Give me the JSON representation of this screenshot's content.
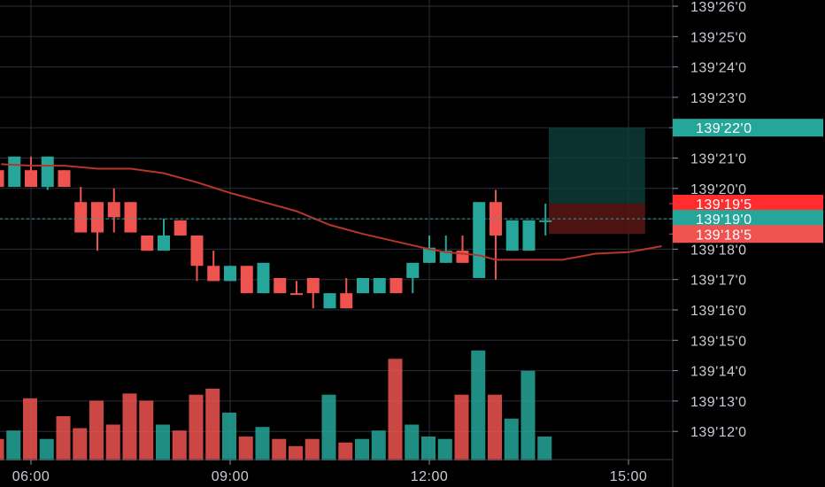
{
  "chart_data": {
    "type": "candlestick",
    "y_axis": {
      "range": [
        139.06,
        139.275
      ],
      "ticks": [
        {
          "value": 139.26,
          "label": "139'26'0"
        },
        {
          "value": 139.25,
          "label": "139'25'0"
        },
        {
          "value": 139.24,
          "label": "139'24'0"
        },
        {
          "value": 139.23,
          "label": "139'23'0"
        },
        {
          "value": 139.22,
          "label": "139'22'0"
        },
        {
          "value": 139.21,
          "label": "139'21'0"
        },
        {
          "value": 139.2,
          "label": "139'20'0"
        },
        {
          "value": 139.19,
          "label": "139'19'0"
        },
        {
          "value": 139.18,
          "label": "139'18'0"
        },
        {
          "value": 139.17,
          "label": "139'17'0"
        },
        {
          "value": 139.16,
          "label": "139'16'0"
        },
        {
          "value": 139.15,
          "label": "139'15'0"
        },
        {
          "value": 139.14,
          "label": "139'14'0"
        },
        {
          "value": 139.13,
          "label": "139'13'0"
        },
        {
          "value": 139.12,
          "label": "139'12'0"
        }
      ]
    },
    "x_axis": {
      "ticks": [
        {
          "value": 6.0,
          "label": "06:00"
        },
        {
          "value": 9.0,
          "label": "09:00"
        },
        {
          "value": 12.0,
          "label": "12:00"
        },
        {
          "value": 15.0,
          "label": "15:00"
        }
      ],
      "range_hours": [
        5.55,
        15.6
      ]
    },
    "candles": [
      {
        "t": 5.5,
        "o": 139.206,
        "h": 139.206,
        "c": 139.2005,
        "l": 139.2005
      },
      {
        "t": 5.75,
        "o": 139.2005,
        "h": 139.2105,
        "c": 139.2105,
        "l": 139.2005
      },
      {
        "t": 6.0,
        "o": 139.206,
        "h": 139.2105,
        "c": 139.2005,
        "l": 139.2005
      },
      {
        "t": 6.25,
        "o": 139.2005,
        "h": 139.2105,
        "c": 139.2105,
        "l": 139.1995
      },
      {
        "t": 6.5,
        "o": 139.206,
        "h": 139.206,
        "c": 139.2005,
        "l": 139.2005
      },
      {
        "t": 6.75,
        "o": 139.1955,
        "h": 139.2005,
        "c": 139.1855,
        "l": 139.1855
      },
      {
        "t": 7.0,
        "o": 139.1955,
        "h": 139.1955,
        "c": 139.1855,
        "l": 139.1795
      },
      {
        "t": 7.25,
        "o": 139.1955,
        "h": 139.2,
        "c": 139.1905,
        "l": 139.1855
      },
      {
        "t": 7.5,
        "o": 139.1955,
        "h": 139.1955,
        "c": 139.1855,
        "l": 139.1855
      },
      {
        "t": 7.75,
        "o": 139.1845,
        "h": 139.1845,
        "c": 139.1795,
        "l": 139.1795
      },
      {
        "t": 8.0,
        "o": 139.1795,
        "h": 139.19,
        "c": 139.1845,
        "l": 139.1795
      },
      {
        "t": 8.25,
        "o": 139.1895,
        "h": 139.1895,
        "c": 139.1845,
        "l": 139.1845
      },
      {
        "t": 8.5,
        "o": 139.1845,
        "h": 139.1845,
        "c": 139.1745,
        "l": 139.1695
      },
      {
        "t": 8.75,
        "o": 139.1745,
        "h": 139.1795,
        "c": 139.1695,
        "l": 139.1695
      },
      {
        "t": 9.0,
        "o": 139.1695,
        "h": 139.1745,
        "c": 139.1745,
        "l": 139.1695
      },
      {
        "t": 9.25,
        "o": 139.1745,
        "h": 139.1745,
        "c": 139.1655,
        "l": 139.1655
      },
      {
        "t": 9.5,
        "o": 139.1655,
        "h": 139.1755,
        "c": 139.1755,
        "l": 139.1655
      },
      {
        "t": 9.75,
        "o": 139.1705,
        "h": 139.1705,
        "c": 139.1655,
        "l": 139.1655
      },
      {
        "t": 10.0,
        "o": 139.1655,
        "h": 139.1695,
        "c": 139.165,
        "l": 139.165
      },
      {
        "t": 10.25,
        "o": 139.1705,
        "h": 139.1705,
        "c": 139.1655,
        "l": 139.1605
      },
      {
        "t": 10.5,
        "o": 139.1605,
        "h": 139.1655,
        "c": 139.1655,
        "l": 139.1605
      },
      {
        "t": 10.75,
        "o": 139.1655,
        "h": 139.1705,
        "c": 139.1605,
        "l": 139.1605
      },
      {
        "t": 11.0,
        "o": 139.1655,
        "h": 139.1705,
        "c": 139.1705,
        "l": 139.1655
      },
      {
        "t": 11.25,
        "o": 139.1655,
        "h": 139.1705,
        "c": 139.1705,
        "l": 139.1655
      },
      {
        "t": 11.5,
        "o": 139.1705,
        "h": 139.1705,
        "c": 139.1655,
        "l": 139.1655
      },
      {
        "t": 11.75,
        "o": 139.1705,
        "h": 139.1755,
        "c": 139.1755,
        "l": 139.1655
      },
      {
        "t": 12.0,
        "o": 139.1755,
        "h": 139.1845,
        "c": 139.1805,
        "l": 139.1755
      },
      {
        "t": 12.25,
        "o": 139.1755,
        "h": 139.1845,
        "c": 139.1795,
        "l": 139.1755
      },
      {
        "t": 12.5,
        "o": 139.1795,
        "h": 139.1845,
        "c": 139.1755,
        "l": 139.1755
      },
      {
        "t": 12.75,
        "o": 139.1705,
        "h": 139.1955,
        "c": 139.1955,
        "l": 139.1705
      },
      {
        "t": 13.0,
        "o": 139.1955,
        "h": 139.1995,
        "c": 139.1845,
        "l": 139.17
      },
      {
        "t": 13.25,
        "o": 139.1795,
        "h": 139.1895,
        "c": 139.1895,
        "l": 139.1795
      },
      {
        "t": 13.5,
        "o": 139.1795,
        "h": 139.1895,
        "c": 139.1895,
        "l": 139.1795
      },
      {
        "t": 13.75,
        "o": 139.1895,
        "h": 139.195,
        "c": 139.1895,
        "l": 139.1845
      }
    ],
    "moving_average": [
      {
        "t": 5.55,
        "v": 139.208
      },
      {
        "t": 6.0,
        "v": 139.2075
      },
      {
        "t": 6.5,
        "v": 139.2075
      },
      {
        "t": 7.0,
        "v": 139.2065
      },
      {
        "t": 7.5,
        "v": 139.2065
      },
      {
        "t": 8.0,
        "v": 139.205
      },
      {
        "t": 8.5,
        "v": 139.202
      },
      {
        "t": 9.0,
        "v": 139.1985
      },
      {
        "t": 9.5,
        "v": 139.1955
      },
      {
        "t": 10.0,
        "v": 139.1925
      },
      {
        "t": 10.5,
        "v": 139.188
      },
      {
        "t": 11.0,
        "v": 139.185
      },
      {
        "t": 11.5,
        "v": 139.1825
      },
      {
        "t": 12.0,
        "v": 139.18
      },
      {
        "t": 12.25,
        "v": 139.179
      },
      {
        "t": 12.5,
        "v": 139.1785
      },
      {
        "t": 12.75,
        "v": 139.178
      },
      {
        "t": 13.0,
        "v": 139.1765
      },
      {
        "t": 13.5,
        "v": 139.1765
      },
      {
        "t": 14.0,
        "v": 139.1765
      },
      {
        "t": 14.25,
        "v": 139.1775
      },
      {
        "t": 14.5,
        "v": 139.1785
      },
      {
        "t": 15.0,
        "v": 139.179
      },
      {
        "t": 15.25,
        "v": 139.18
      },
      {
        "t": 15.5,
        "v": 139.181
      }
    ],
    "volume_relative": [
      0.18,
      0.25,
      0.52,
      0.18,
      0.37,
      0.27,
      0.5,
      0.3,
      0.56,
      0.5,
      0.3,
      0.25,
      0.55,
      0.6,
      0.4,
      0.2,
      0.28,
      0.18,
      0.12,
      0.18,
      0.55,
      0.15,
      0.18,
      0.25,
      0.85,
      0.3,
      0.2,
      0.18,
      0.55,
      0.92,
      0.55,
      0.35,
      0.75,
      0.2
    ],
    "position_box": {
      "t_start": 13.8,
      "t_end": 15.25,
      "target": 139.22,
      "entry": 139.195,
      "stop": 139.185
    },
    "price_tags": [
      {
        "value": 139.22,
        "label": "139'22'0",
        "color": "#26a69a"
      },
      {
        "value": 139.195,
        "label": "139'19'5",
        "color": "#ff2d2d"
      },
      {
        "value": 139.19,
        "label": "139'19'0",
        "color": "#26a69a"
      },
      {
        "value": 139.185,
        "label": "139'18'5",
        "color": "#ef5350"
      }
    ],
    "current_price": 139.19,
    "colors": {
      "up": "#26a69a",
      "down": "#ef5350",
      "ma": "#b8352b",
      "grid": "#2a2e39",
      "axis_text": "#c9ccd4"
    }
  }
}
